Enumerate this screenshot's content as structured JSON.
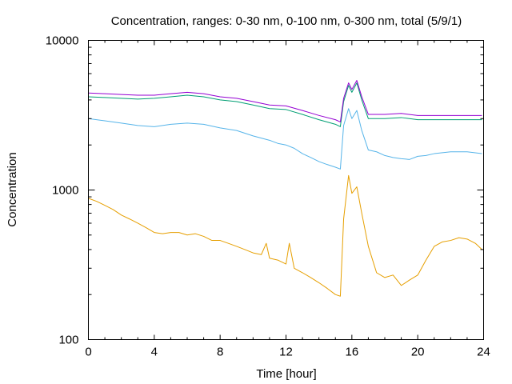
{
  "chart_data": {
    "type": "line",
    "title": "Concentration, ranges: 0-30 nm, 0-100 nm, 0-300 nm, total (5/9/1)",
    "xlabel": "Time [hour]",
    "ylabel": "Concentration",
    "xlim": [
      0,
      24
    ],
    "ylim": [
      100,
      10000
    ],
    "yscale": "log",
    "xticks": [
      0,
      4,
      8,
      12,
      16,
      20,
      24
    ],
    "xtick_labels": [
      "0",
      "4",
      "8",
      "12",
      "16",
      "20",
      "24"
    ],
    "yticks": [
      100,
      1000,
      10000
    ],
    "ytick_labels": [
      "100",
      "1000",
      "10000"
    ],
    "grid": false,
    "legend": "none",
    "series": [
      {
        "color": "#e69f00",
        "x": [
          0,
          0.5,
          1,
          1.5,
          2,
          2.5,
          3,
          3.5,
          4,
          4.5,
          5,
          5.5,
          6,
          6.5,
          7,
          7.5,
          8,
          8.5,
          9,
          9.5,
          10,
          10.5,
          10.8,
          11,
          11.5,
          12,
          12.2,
          12.5,
          13,
          13.5,
          14,
          14.5,
          15,
          15.3,
          15.5,
          15.8,
          16,
          16.3,
          16.6,
          17,
          17.5,
          18,
          18.5,
          19,
          19.5,
          20,
          20.5,
          21,
          21.5,
          22,
          22.5,
          23,
          23.5,
          23.9
        ],
        "values": [
          880,
          840,
          790,
          740,
          680,
          640,
          600,
          560,
          520,
          510,
          520,
          520,
          500,
          510,
          490,
          460,
          460,
          440,
          420,
          400,
          380,
          370,
          440,
          350,
          340,
          320,
          440,
          300,
          280,
          260,
          240,
          220,
          200,
          195,
          640,
          1250,
          950,
          1050,
          700,
          420,
          280,
          260,
          270,
          230,
          250,
          270,
          340,
          420,
          450,
          460,
          480,
          470,
          440,
          400
        ]
      },
      {
        "color": "#56b4e9",
        "x": [
          0,
          1,
          2,
          3,
          4,
          5,
          6,
          7,
          8,
          9,
          10,
          11,
          11.5,
          12,
          12.5,
          13,
          13.5,
          14,
          14.5,
          15,
          15.3,
          15.5,
          15.8,
          16,
          16.3,
          16.6,
          17,
          17.5,
          18,
          18.5,
          19,
          19.5,
          20,
          20.5,
          21,
          22,
          23,
          23.9
        ],
        "values": [
          3000,
          2900,
          2800,
          2700,
          2650,
          2750,
          2800,
          2750,
          2600,
          2500,
          2300,
          2150,
          2050,
          2000,
          1900,
          1750,
          1650,
          1550,
          1480,
          1420,
          1380,
          2700,
          3500,
          3000,
          3400,
          2500,
          1850,
          1800,
          1700,
          1650,
          1620,
          1600,
          1680,
          1700,
          1750,
          1800,
          1800,
          1750
        ]
      },
      {
        "color": "#009e73",
        "x": [
          0,
          1,
          2,
          3,
          4,
          5,
          6,
          7,
          8,
          9,
          10,
          11,
          12,
          13,
          14,
          15,
          15.3,
          15.5,
          15.8,
          16,
          16.3,
          16.6,
          17,
          18,
          19,
          20,
          21,
          22,
          23,
          23.9
        ],
        "values": [
          4200,
          4150,
          4100,
          4050,
          4100,
          4200,
          4300,
          4200,
          4000,
          3900,
          3700,
          3500,
          3450,
          3200,
          2950,
          2750,
          2650,
          3900,
          5000,
          4500,
          5200,
          4000,
          3000,
          3000,
          3050,
          2950,
          2950,
          2950,
          2950,
          2950
        ]
      },
      {
        "color": "#9400d3",
        "x": [
          0,
          1,
          2,
          3,
          4,
          5,
          6,
          7,
          8,
          9,
          10,
          11,
          12,
          13,
          14,
          15,
          15.3,
          15.5,
          15.8,
          16,
          16.3,
          16.6,
          17,
          18,
          19,
          20,
          21,
          22,
          23,
          23.9
        ],
        "values": [
          4450,
          4400,
          4350,
          4300,
          4300,
          4400,
          4500,
          4400,
          4200,
          4100,
          3900,
          3700,
          3650,
          3400,
          3150,
          2950,
          2850,
          4100,
          5200,
          4700,
          5400,
          4200,
          3200,
          3200,
          3250,
          3150,
          3150,
          3150,
          3150,
          3150
        ]
      }
    ]
  }
}
